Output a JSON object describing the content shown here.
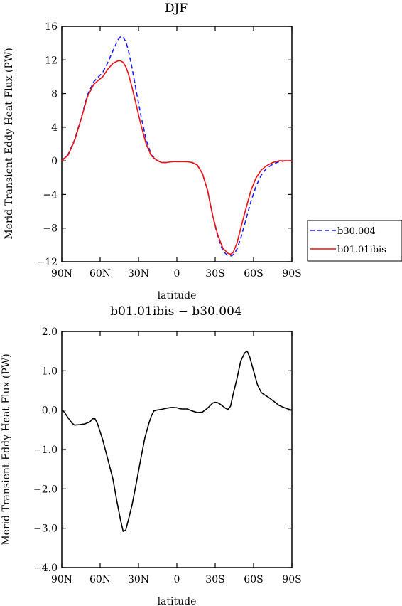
{
  "chart_data": [
    {
      "type": "line",
      "title": "DJF",
      "xlabel": "latitude",
      "ylabel": "Merid Transient Eddy Heat Flux (PW)",
      "xlim": [
        90,
        -90
      ],
      "ylim": [
        -12,
        16
      ],
      "x_ticks": [
        90,
        60,
        30,
        0,
        -30,
        -60,
        -90
      ],
      "x_tick_labels": [
        "90N",
        "60N",
        "30N",
        "0",
        "30S",
        "60S",
        "90S"
      ],
      "y_ticks": [
        -12,
        -8,
        -4,
        0,
        4,
        8,
        12,
        16
      ],
      "y_tick_labels": [
        "−12",
        "−8",
        "−4",
        "0",
        "4",
        "8",
        "12",
        "16"
      ],
      "grid": false,
      "legend_position": "outside-right",
      "series": [
        {
          "name": "b30.004",
          "color": "#1a1aff",
          "dash": "dashed",
          "x": [
            90,
            85,
            80,
            75,
            70,
            65,
            62,
            58,
            54,
            50,
            46,
            44,
            42,
            40,
            38,
            35,
            32,
            28,
            24,
            20,
            16,
            12,
            8,
            4,
            0,
            -4,
            -8,
            -12,
            -16,
            -20,
            -24,
            -28,
            -32,
            -36,
            -40,
            -43,
            -45,
            -47,
            -50,
            -54,
            -58,
            -62,
            -66,
            -70,
            -75,
            -80,
            -85,
            -90
          ],
          "values": [
            0,
            0.8,
            2.5,
            5.0,
            7.8,
            9.4,
            9.9,
            10.5,
            11.7,
            13.1,
            14.4,
            14.8,
            14.7,
            14.2,
            13.2,
            11.0,
            8.5,
            5.3,
            2.5,
            0.7,
            0.1,
            -0.2,
            -0.2,
            -0.1,
            -0.1,
            -0.1,
            -0.1,
            -0.2,
            -0.5,
            -1.5,
            -3.5,
            -6.5,
            -9.0,
            -10.7,
            -11.3,
            -11.3,
            -11.0,
            -10.5,
            -9.2,
            -7.0,
            -4.8,
            -3.0,
            -1.7,
            -0.9,
            -0.4,
            -0.1,
            0,
            0
          ]
        },
        {
          "name": "b01.01ibis",
          "color": "#ee1111",
          "dash": "solid",
          "x": [
            90,
            85,
            80,
            75,
            70,
            65,
            62,
            58,
            54,
            50,
            46,
            44,
            42,
            40,
            38,
            35,
            32,
            28,
            24,
            20,
            16,
            12,
            8,
            4,
            0,
            -4,
            -8,
            -12,
            -16,
            -20,
            -24,
            -28,
            -32,
            -36,
            -40,
            -42,
            -44,
            -47,
            -50,
            -54,
            -58,
            -62,
            -66,
            -70,
            -75,
            -80,
            -85,
            -90
          ],
          "values": [
            0,
            0.7,
            2.4,
            4.9,
            7.6,
            9.1,
            9.5,
            10.0,
            10.9,
            11.6,
            11.9,
            11.9,
            11.7,
            11.2,
            10.4,
            8.7,
            6.8,
            4.2,
            2.0,
            0.6,
            0.1,
            -0.2,
            -0.2,
            -0.1,
            -0.1,
            -0.1,
            -0.1,
            -0.2,
            -0.5,
            -1.5,
            -3.5,
            -6.5,
            -8.8,
            -10.4,
            -11.0,
            -11.1,
            -10.9,
            -9.8,
            -8.0,
            -5.7,
            -3.5,
            -2.0,
            -1.1,
            -0.6,
            -0.2,
            0,
            0,
            0
          ]
        }
      ]
    },
    {
      "type": "line",
      "title": "b01.01ibis − b30.004",
      "xlabel": "latitude",
      "ylabel": "Merid Transient Eddy Heat Flux (PW)",
      "xlim": [
        90,
        -90
      ],
      "ylim": [
        -4,
        2
      ],
      "x_ticks": [
        90,
        60,
        30,
        0,
        -30,
        -60,
        -90
      ],
      "x_tick_labels": [
        "90N",
        "60N",
        "30N",
        "0",
        "30S",
        "60S",
        "90S"
      ],
      "y_ticks": [
        -4,
        -3,
        -2,
        -1,
        0,
        1,
        2
      ],
      "y_tick_labels": [
        "−4.0",
        "−3.0",
        "−2.0",
        "−1.0",
        "0.0",
        "1.0",
        "2.0"
      ],
      "grid": false,
      "series": [
        {
          "color": "#000000",
          "dash": "solid",
          "x": [
            90,
            88,
            85,
            82,
            80,
            76,
            72,
            68,
            66,
            64,
            62,
            58,
            54,
            50,
            47,
            44,
            42,
            40,
            38,
            35,
            32,
            28,
            25,
            22,
            20,
            18,
            16,
            12,
            8,
            4,
            0,
            -2,
            -4,
            -8,
            -12,
            -16,
            -20,
            -24,
            -28,
            -30,
            -32,
            -34,
            -36,
            -38,
            -40,
            -42,
            -44,
            -47,
            -50,
            -53,
            -55,
            -57,
            -60,
            -63,
            -66,
            -69,
            -72,
            -76,
            -80,
            -85,
            -90
          ],
          "values": [
            0,
            -0.05,
            -0.2,
            -0.33,
            -0.38,
            -0.37,
            -0.35,
            -0.3,
            -0.22,
            -0.22,
            -0.35,
            -0.75,
            -1.25,
            -1.75,
            -2.3,
            -2.8,
            -3.08,
            -3.05,
            -2.8,
            -2.4,
            -1.9,
            -1.2,
            -0.7,
            -0.35,
            -0.15,
            -0.02,
            0,
            0.02,
            0.05,
            0.07,
            0.06,
            0.04,
            0.03,
            0.03,
            -0.02,
            -0.06,
            -0.05,
            0.05,
            0.18,
            0.2,
            0.19,
            0.15,
            0.1,
            0.05,
            0.02,
            0.1,
            0.4,
            0.8,
            1.25,
            1.45,
            1.5,
            1.35,
            1.0,
            0.65,
            0.45,
            0.38,
            0.32,
            0.22,
            0.12,
            0.05,
            0
          ]
        }
      ]
    }
  ]
}
